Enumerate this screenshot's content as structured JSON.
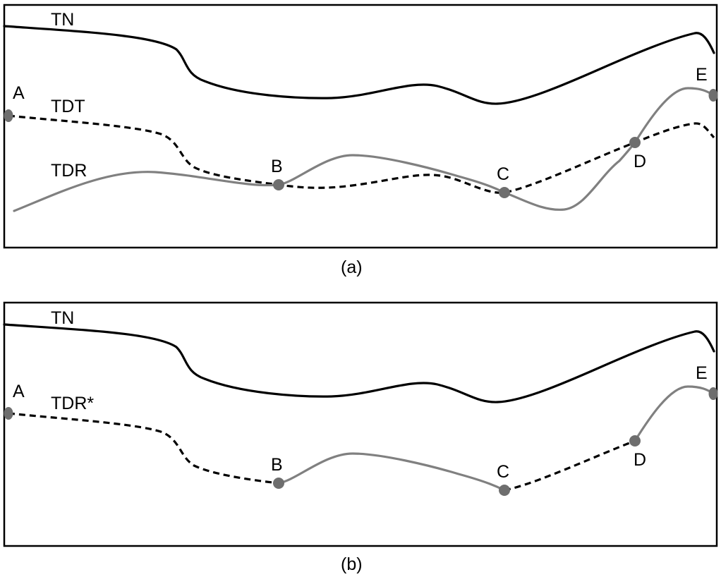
{
  "colors": {
    "terrain": "#000000",
    "tdt": "#000000",
    "tdr": "#808080",
    "points": "#6e6e6e"
  },
  "panel_a": {
    "caption": "(a)",
    "curve_labels": {
      "tn": "TN",
      "tdt": "TDT",
      "tdr": "TDR"
    },
    "points": {
      "a": "A",
      "b": "B",
      "c": "C",
      "d": "D",
      "e": "E"
    }
  },
  "panel_b": {
    "caption": "(b)",
    "curve_labels": {
      "tn": "TN",
      "tdr_star": "TDR*"
    },
    "points": {
      "a": "A",
      "b": "B",
      "c": "C",
      "d": "D",
      "e": "E"
    }
  }
}
